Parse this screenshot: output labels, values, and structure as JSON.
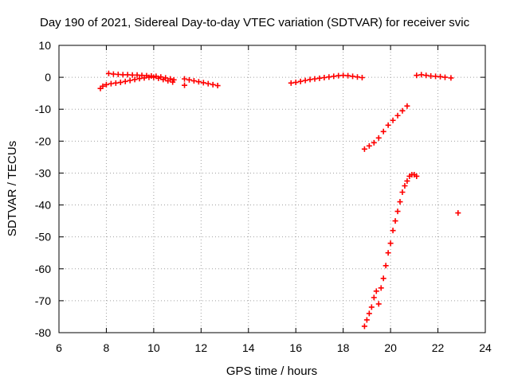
{
  "chart_data": {
    "type": "scatter",
    "title": "Day 190 of 2021, Sidereal Day-to-day VTEC variation (SDTVAR) for receiver svic",
    "xlabel": "GPS time / hours",
    "ylabel": "SDTVAR / TECUs",
    "xlim": [
      6,
      24
    ],
    "ylim": [
      -80,
      10
    ],
    "xticks": [
      6,
      8,
      10,
      12,
      14,
      16,
      18,
      20,
      22,
      24
    ],
    "yticks": [
      10,
      0,
      -10,
      -20,
      -30,
      -40,
      -50,
      -60,
      -70,
      -80
    ],
    "grid": true,
    "marker": "+",
    "color": "#ff0000",
    "series": [
      {
        "x": [
          7.75,
          7.85,
          8.0,
          8.2,
          8.4,
          8.6,
          8.8,
          9.0,
          9.2,
          9.4,
          9.6,
          9.8,
          10.0,
          10.2,
          10.4,
          10.6,
          10.8,
          8.1,
          8.3,
          8.5,
          8.7,
          8.9,
          9.1,
          9.3,
          9.5,
          9.7,
          9.9,
          10.1,
          10.3,
          10.5,
          10.7,
          10.85,
          11.3,
          11.5,
          11.7,
          11.9,
          12.1,
          12.3,
          12.5,
          12.7,
          11.3,
          15.8,
          16.0,
          16.2,
          16.4,
          16.6,
          16.8,
          17.0,
          17.2,
          17.4,
          17.6,
          17.8,
          18.0,
          18.2,
          18.4,
          18.6,
          18.8,
          18.9,
          19.1,
          19.3,
          19.5,
          19.7,
          19.9,
          20.1,
          20.3,
          20.5,
          20.7,
          18.9,
          19.0,
          19.1,
          19.2,
          19.3,
          19.4,
          19.5,
          19.6,
          19.7,
          19.8,
          19.9,
          20.0,
          20.1,
          20.2,
          20.3,
          20.4,
          20.5,
          20.6,
          20.7,
          20.8,
          20.9,
          21.0,
          21.1,
          21.1,
          21.3,
          21.5,
          21.7,
          21.9,
          22.1,
          22.3,
          22.55,
          22.85
        ],
        "y": [
          -3.5,
          -2.8,
          -2.3,
          -2.0,
          -1.8,
          -1.6,
          -1.3,
          -1.0,
          -0.7,
          -0.4,
          -0.2,
          0.0,
          0.0,
          -0.3,
          -0.7,
          -1.1,
          -1.5,
          1.2,
          1.0,
          0.9,
          0.8,
          0.8,
          0.7,
          0.7,
          0.6,
          0.5,
          0.4,
          0.3,
          0.1,
          -0.2,
          -0.5,
          -0.8,
          -0.5,
          -0.8,
          -1.1,
          -1.4,
          -1.7,
          -2.0,
          -2.3,
          -2.6,
          -2.5,
          -1.8,
          -1.6,
          -1.3,
          -1.0,
          -0.7,
          -0.5,
          -0.3,
          -0.1,
          0.1,
          0.3,
          0.5,
          0.6,
          0.5,
          0.3,
          0.1,
          -0.1,
          -22.5,
          -21.5,
          -20.5,
          -19.0,
          -17.0,
          -15.0,
          -13.5,
          -12.0,
          -10.5,
          -9.0,
          -78.0,
          -76.0,
          -74.0,
          -72.0,
          -69.0,
          -67.0,
          -71.0,
          -66.0,
          -63.0,
          -59.0,
          -55.0,
          -52.0,
          -48.0,
          -45.0,
          -42.0,
          -39.0,
          -36.0,
          -34.0,
          -32.5,
          -31.0,
          -30.5,
          -30.5,
          -31.0,
          0.6,
          0.8,
          0.6,
          0.4,
          0.3,
          0.2,
          0.0,
          -0.2,
          -42.5
        ]
      }
    ]
  }
}
